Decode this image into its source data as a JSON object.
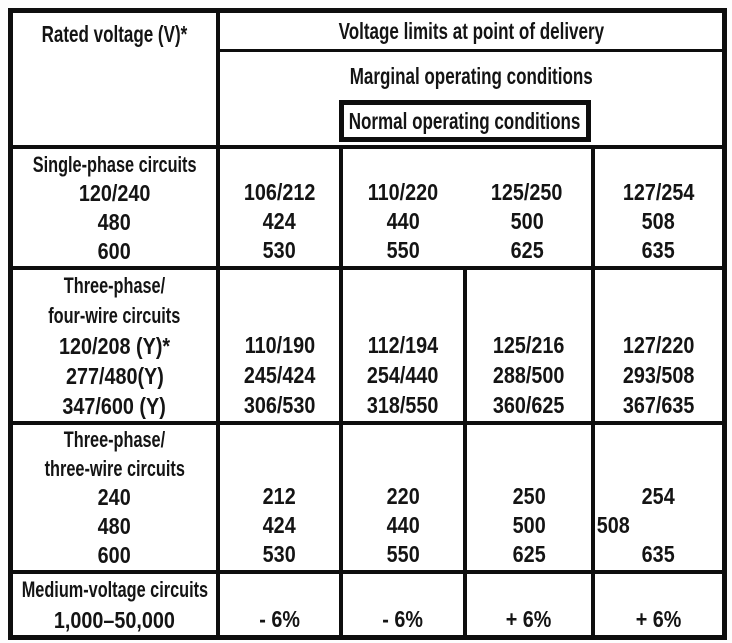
{
  "colors": {
    "ink": "#0e0e0e",
    "paper": "#ffffff"
  },
  "header": {
    "rated_voltage": "Rated voltage (V)*",
    "voltage_limits": "Voltage limits at point of delivery",
    "marginal": "Marginal operating conditions",
    "normal": "Normal operating conditions"
  },
  "sections": [
    {
      "name": "Single-phase circuits",
      "labels": [
        "Single-phase circuits",
        "120/240",
        "480",
        "600"
      ],
      "col1": [
        "106/212",
        "424",
        "530"
      ],
      "col2": [
        "110/220",
        "440",
        "550"
      ],
      "col3": [
        "125/250",
        "500",
        "625"
      ],
      "col4": [
        "127/254",
        "508",
        "635"
      ]
    },
    {
      "name": "Three-phase/four-wire circuits",
      "labels": [
        "Three-phase/",
        "four-wire circuits",
        "120/208 (Y)*",
        "277/480(Y)",
        "347/600 (Y)"
      ],
      "col1": [
        "110/190",
        "245/424",
        "306/530"
      ],
      "col2": [
        "112/194",
        "254/440",
        "318/550"
      ],
      "col3": [
        "125/216",
        "288/500",
        "360/625"
      ],
      "col4": [
        "127/220",
        "293/508",
        "367/635"
      ]
    },
    {
      "name": "Three-phase/three-wire circuits",
      "labels": [
        "Three-phase/",
        "three-wire circuits",
        "240",
        "480",
        "600"
      ],
      "col1": [
        "212",
        "424",
        "530"
      ],
      "col2": [
        "220",
        "440",
        "550"
      ],
      "col3": [
        "250",
        "500",
        "625"
      ],
      "col4": [
        "254",
        "508",
        "635"
      ]
    },
    {
      "name": "Medium-voltage circuits",
      "labels": [
        "Medium-voltage circuits",
        "1,000–50,000"
      ],
      "col1": [
        "- 6%"
      ],
      "col2": [
        "- 6%"
      ],
      "col3": [
        "+ 6%"
      ],
      "col4": [
        "+ 6%"
      ]
    }
  ]
}
